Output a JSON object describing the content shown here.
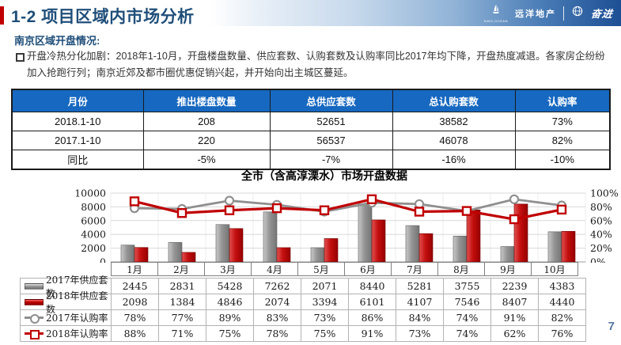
{
  "header": {
    "title": "1-2 项目区域内市场分析",
    "accent_color": "#C00000",
    "title_color": "#1F4E79",
    "brand": {
      "logo1_text": "远洋地产",
      "logo1_sub": "SINO-OCEAN",
      "logo2_text": "奋进"
    }
  },
  "section_heading": "南京区域开盘情况:",
  "bullet": {
    "text": "开盘冷热分化加剧：2018年1-10月，开盘楼盘数量、供应套数、认购套数及认购率同比2017年均下降，开盘热度减退。各家房企纷纷加入抢跑行列；南京近郊及都市圈优惠促销兴起，并开始向出主城区蔓延。"
  },
  "summary_table": {
    "header_bg": "#1768C0",
    "headers": [
      "月份",
      "推出楼盘数量",
      "总供应套数",
      "总认购套数",
      "认购率"
    ],
    "rows": [
      [
        "2018.1-10",
        "208",
        "52651",
        "38582",
        "73%"
      ],
      [
        "2017.1-10",
        "220",
        "56537",
        "46078",
        "82%"
      ],
      [
        "同比",
        "-5%",
        "-7%",
        "-16%",
        "-10%"
      ]
    ]
  },
  "chart_data": {
    "type": "bar",
    "subtype": "combo-bar-line-dual-axis",
    "title": "全市（含高淳溧水）市场开盘数据",
    "categories": [
      "1月",
      "2月",
      "3月",
      "4月",
      "5月",
      "6月",
      "7月",
      "8月",
      "9月",
      "10月"
    ],
    "series": [
      {
        "name": "2017年供应套数",
        "type": "bar",
        "axis": "left",
        "color": "#8f8f8f",
        "values": [
          2445,
          2831,
          5428,
          7262,
          2071,
          8440,
          5281,
          3755,
          2239,
          4383
        ]
      },
      {
        "name": "2018年供应套数",
        "type": "bar",
        "axis": "left",
        "color": "#C00000",
        "values": [
          2098,
          1384,
          4846,
          2074,
          3394,
          6101,
          4107,
          7546,
          8407,
          4440
        ]
      },
      {
        "name": "2017年认购率",
        "type": "line",
        "marker": "circle",
        "axis": "right",
        "color": "#8f8f8f",
        "values": [
          78,
          77,
          89,
          83,
          73,
          86,
          84,
          74,
          91,
          82
        ]
      },
      {
        "name": "2018年认购率",
        "type": "line",
        "marker": "square",
        "axis": "right",
        "color": "#C00000",
        "values": [
          88,
          71,
          75,
          78,
          75,
          91,
          73,
          74,
          62,
          76
        ]
      }
    ],
    "left_axis": {
      "min": 0,
      "max": 10000,
      "step": 2000,
      "ticks": [
        "0",
        "2000",
        "4000",
        "6000",
        "8000",
        "10000"
      ]
    },
    "right_axis": {
      "min": 0,
      "max": 100,
      "step": 20,
      "ticks": [
        "0%",
        "20%",
        "40%",
        "60%",
        "80%",
        "100%"
      ]
    },
    "grid": true,
    "legend_position": "data-table-left",
    "data_table": {
      "rows": [
        {
          "label": "2017年供应套数",
          "icon": "bar-gray",
          "values": [
            "2445",
            "2831",
            "5428",
            "7262",
            "2071",
            "8440",
            "5281",
            "3755",
            "2239",
            "4383"
          ]
        },
        {
          "label": "2018年供应套数",
          "icon": "bar-red",
          "values": [
            "2098",
            "1384",
            "4846",
            "2074",
            "3394",
            "6101",
            "4107",
            "7546",
            "8407",
            "4440"
          ]
        },
        {
          "label": "2017年认购率",
          "icon": "line-circle-gray",
          "values": [
            "78%",
            "77%",
            "89%",
            "83%",
            "73%",
            "86%",
            "84%",
            "74%",
            "91%",
            "82%"
          ]
        },
        {
          "label": "2018年认购率",
          "icon": "line-square-red",
          "values": [
            "88%",
            "71%",
            "75%",
            "78%",
            "75%",
            "91%",
            "73%",
            "74%",
            "62%",
            "76%"
          ]
        }
      ]
    }
  },
  "page_number": "7"
}
